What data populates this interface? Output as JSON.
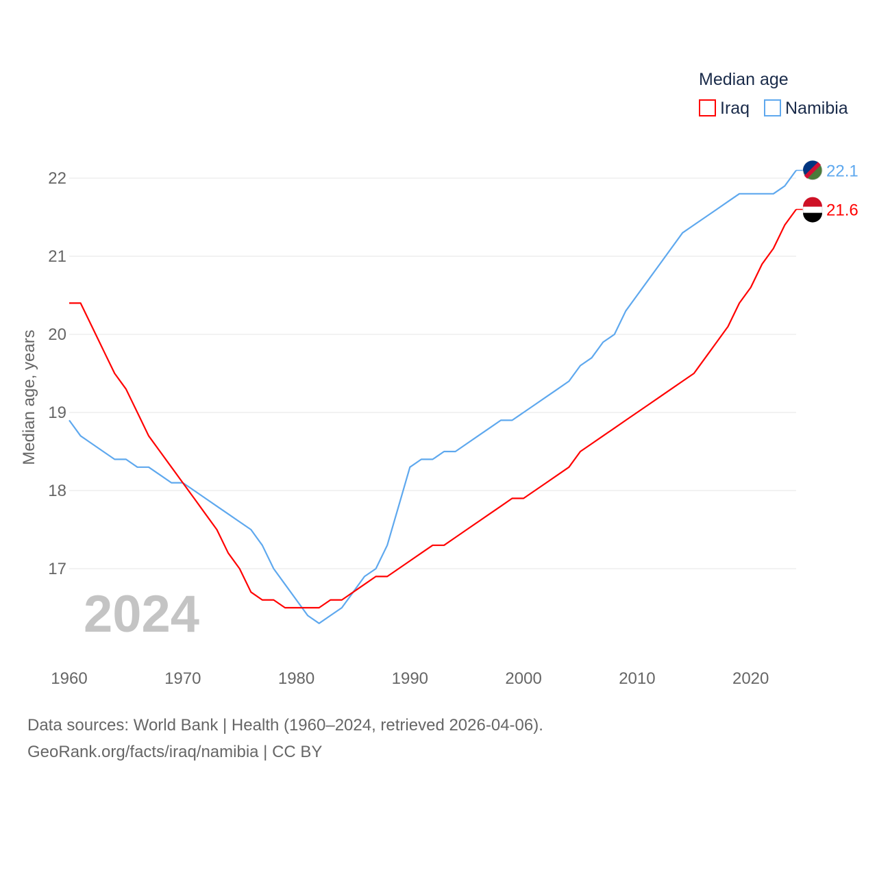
{
  "chart_data": {
    "type": "line",
    "title": "",
    "xlabel": "",
    "ylabel": "Median age, years",
    "xlim": [
      1960,
      2024
    ],
    "ylim": [
      16.0,
      22.3
    ],
    "x_ticks": [
      1960,
      1970,
      1980,
      1990,
      2000,
      2010,
      2020
    ],
    "y_ticks": [
      17,
      18,
      19,
      20,
      21,
      22
    ],
    "grid": true,
    "legend": {
      "title": "Median age",
      "placement": "top-right"
    },
    "year_label": "2024",
    "x": [
      1960,
      1961,
      1962,
      1963,
      1964,
      1965,
      1966,
      1967,
      1968,
      1969,
      1970,
      1971,
      1972,
      1973,
      1974,
      1975,
      1976,
      1977,
      1978,
      1979,
      1980,
      1981,
      1982,
      1983,
      1984,
      1985,
      1986,
      1987,
      1988,
      1989,
      1990,
      1991,
      1992,
      1993,
      1994,
      1995,
      1996,
      1997,
      1998,
      1999,
      2000,
      2001,
      2002,
      2003,
      2004,
      2005,
      2006,
      2007,
      2008,
      2009,
      2010,
      2011,
      2012,
      2013,
      2014,
      2015,
      2016,
      2017,
      2018,
      2019,
      2020,
      2021,
      2022,
      2023,
      2024
    ],
    "series": [
      {
        "name": "Iraq",
        "color": "#ff0000",
        "end_label": "21.6",
        "values": [
          20.4,
          20.4,
          20.1,
          19.8,
          19.5,
          19.3,
          19.0,
          18.7,
          18.5,
          18.3,
          18.1,
          17.9,
          17.7,
          17.5,
          17.2,
          17.0,
          16.7,
          16.6,
          16.6,
          16.5,
          16.5,
          16.5,
          16.5,
          16.6,
          16.6,
          16.7,
          16.8,
          16.9,
          16.9,
          17.0,
          17.1,
          17.2,
          17.3,
          17.3,
          17.4,
          17.5,
          17.6,
          17.7,
          17.8,
          17.9,
          17.9,
          18.0,
          18.1,
          18.2,
          18.3,
          18.5,
          18.6,
          18.7,
          18.8,
          18.9,
          19.0,
          19.1,
          19.2,
          19.3,
          19.4,
          19.5,
          19.7,
          19.9,
          20.1,
          20.4,
          20.6,
          20.9,
          21.1,
          21.4,
          21.6
        ]
      },
      {
        "name": "Namibia",
        "color": "#5ea8ee",
        "end_label": "22.1",
        "values": [
          18.9,
          18.7,
          18.6,
          18.5,
          18.4,
          18.4,
          18.3,
          18.3,
          18.2,
          18.1,
          18.1,
          18.0,
          17.9,
          17.8,
          17.7,
          17.6,
          17.5,
          17.3,
          17.0,
          16.8,
          16.6,
          16.4,
          16.3,
          16.4,
          16.5,
          16.7,
          16.9,
          17.0,
          17.3,
          17.8,
          18.3,
          18.4,
          18.4,
          18.5,
          18.5,
          18.6,
          18.7,
          18.8,
          18.9,
          18.9,
          19.0,
          19.1,
          19.2,
          19.3,
          19.4,
          19.6,
          19.7,
          19.9,
          20.0,
          20.3,
          20.5,
          20.7,
          20.9,
          21.1,
          21.3,
          21.4,
          21.5,
          21.6,
          21.7,
          21.8,
          21.8,
          21.8,
          21.8,
          21.9,
          22.1
        ]
      }
    ]
  },
  "footer": {
    "line1": "Data sources: World Bank | Health (1960–2024, retrieved 2026-04-06).",
    "line2": "GeoRank.org/facts/iraq/namibia | CC BY"
  }
}
